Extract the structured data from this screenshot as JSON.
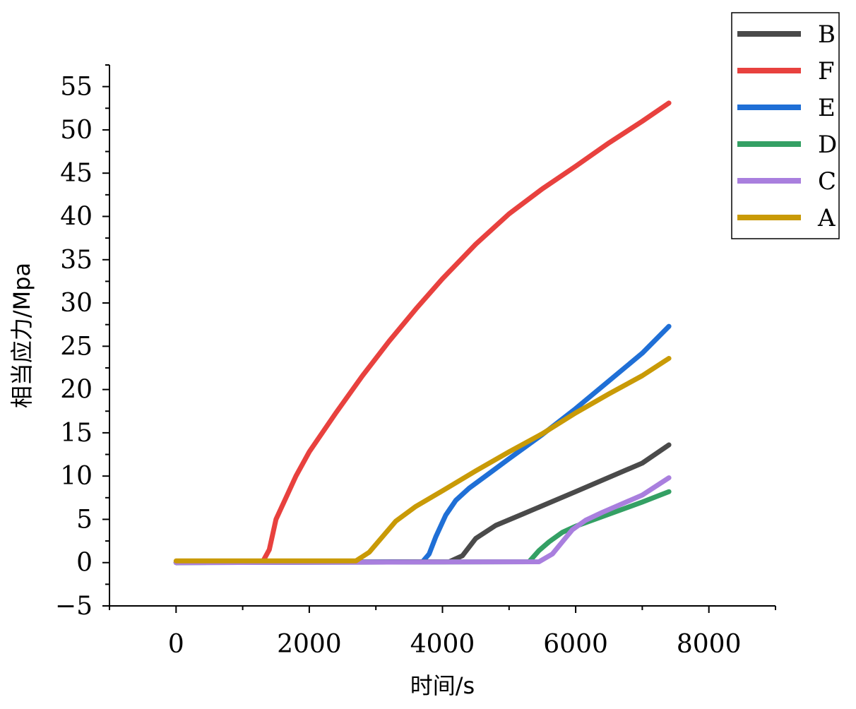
{
  "chart_data": {
    "type": "line",
    "xlabel": "时间/s",
    "ylabel": "相当应力/Mpa",
    "xlim": [
      -1000,
      9000
    ],
    "ylim": [
      -5,
      57.5
    ],
    "x_ticks": [
      0,
      2000,
      4000,
      6000,
      8000
    ],
    "y_ticks": [
      -5,
      0,
      5,
      10,
      15,
      20,
      25,
      30,
      35,
      40,
      45,
      50,
      55
    ],
    "grid": false,
    "legend_position": "top-right",
    "series": [
      {
        "name": "B",
        "color": "#4a4a4a",
        "points": [
          [
            0,
            0
          ],
          [
            4100,
            0.1
          ],
          [
            4300,
            0.8
          ],
          [
            4500,
            2.8
          ],
          [
            4800,
            4.3
          ],
          [
            5200,
            5.6
          ],
          [
            6000,
            8.2
          ],
          [
            7000,
            11.5
          ],
          [
            7400,
            13.6
          ]
        ]
      },
      {
        "name": "F",
        "color": "#e8413e",
        "points": [
          [
            0,
            0
          ],
          [
            1300,
            0.1
          ],
          [
            1400,
            1.5
          ],
          [
            1500,
            5
          ],
          [
            1650,
            7.5
          ],
          [
            1800,
            10
          ],
          [
            2000,
            12.8
          ],
          [
            2400,
            17.3
          ],
          [
            2800,
            21.6
          ],
          [
            3200,
            25.6
          ],
          [
            3600,
            29.3
          ],
          [
            4000,
            32.8
          ],
          [
            4500,
            36.8
          ],
          [
            5000,
            40.3
          ],
          [
            5500,
            43.2
          ],
          [
            6000,
            45.8
          ],
          [
            6500,
            48.5
          ],
          [
            7000,
            51
          ],
          [
            7400,
            53.1
          ]
        ]
      },
      {
        "name": "E",
        "color": "#1f6fd6",
        "points": [
          [
            0,
            0
          ],
          [
            3700,
            0.1
          ],
          [
            3800,
            1
          ],
          [
            3900,
            3
          ],
          [
            4050,
            5.5
          ],
          [
            4200,
            7.2
          ],
          [
            4400,
            8.6
          ],
          [
            4700,
            10.3
          ],
          [
            5000,
            12
          ],
          [
            5500,
            14.8
          ],
          [
            6000,
            17.8
          ],
          [
            6500,
            21
          ],
          [
            7000,
            24.2
          ],
          [
            7400,
            27.3
          ]
        ]
      },
      {
        "name": "D",
        "color": "#34a064",
        "points": [
          [
            0,
            0
          ],
          [
            5300,
            0.1
          ],
          [
            5450,
            1.4
          ],
          [
            5600,
            2.4
          ],
          [
            5800,
            3.5
          ],
          [
            6000,
            4.2
          ],
          [
            6500,
            5.6
          ],
          [
            7000,
            7
          ],
          [
            7400,
            8.2
          ]
        ]
      },
      {
        "name": "C",
        "color": "#a97fde",
        "points": [
          [
            0,
            0
          ],
          [
            5450,
            0.1
          ],
          [
            5650,
            1
          ],
          [
            5800,
            2.4
          ],
          [
            5950,
            3.8
          ],
          [
            6150,
            4.9
          ],
          [
            6400,
            5.8
          ],
          [
            7000,
            7.8
          ],
          [
            7400,
            9.8
          ]
        ]
      },
      {
        "name": "A",
        "color": "#c99a06",
        "points": [
          [
            0,
            0.2
          ],
          [
            2700,
            0.2
          ],
          [
            2900,
            1.2
          ],
          [
            3100,
            3
          ],
          [
            3300,
            4.8
          ],
          [
            3600,
            6.5
          ],
          [
            4000,
            8.3
          ],
          [
            4500,
            10.6
          ],
          [
            5000,
            12.8
          ],
          [
            5500,
            14.9
          ],
          [
            6000,
            17.3
          ],
          [
            6500,
            19.5
          ],
          [
            7000,
            21.6
          ],
          [
            7400,
            23.6
          ]
        ]
      }
    ]
  }
}
